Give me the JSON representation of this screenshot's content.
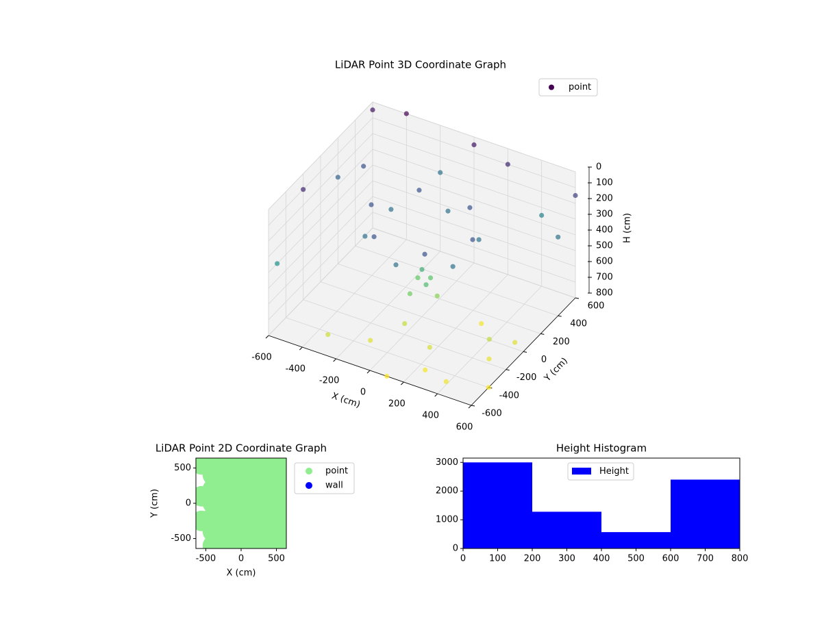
{
  "chart_data": [
    {
      "type": "scatter3d",
      "title": "LiDAR Point 3D Coordinate Graph",
      "xlabel": "X (cm)",
      "ylabel": "Y (cm)",
      "zlabel": "H (cm)",
      "xlim": [
        -600,
        600
      ],
      "ylim": [
        -600,
        600
      ],
      "zlim": [
        0,
        800
      ],
      "xticks": [
        -600,
        -400,
        -200,
        0,
        200,
        400,
        600
      ],
      "yticks": [
        -600,
        -400,
        -200,
        0,
        200,
        400,
        600
      ],
      "zticks": [
        0,
        100,
        200,
        300,
        400,
        500,
        600,
        700,
        800
      ],
      "colormap": "viridis",
      "grid": true,
      "legend": "upper right",
      "series": [
        {
          "name": "point",
          "color": "#440154",
          "x": [
            300,
            260,
            150,
            0,
            -150,
            -260,
            -300,
            -260,
            -150,
            0,
            150,
            260,
            0,
            50,
            -50,
            80,
            -30,
            20,
            200,
            400,
            500,
            300,
            -100,
            100,
            600,
            450,
            -300,
            0,
            250,
            550,
            -600,
            -400,
            -600,
            -600,
            600,
            200,
            -200,
            600,
            -600,
            400,
            -500,
            0
          ],
          "y": [
            0,
            150,
            260,
            300,
            260,
            150,
            0,
            -150,
            -260,
            -300,
            -260,
            -150,
            0,
            -50,
            50,
            20,
            -80,
            60,
            -300,
            -500,
            -200,
            100,
            -400,
            -600,
            -400,
            -100,
            -500,
            -200,
            -450,
            0,
            600,
            600,
            -200,
            200,
            600,
            600,
            600,
            400,
            -500,
            600,
            300,
            600
          ],
          "z": [
            200,
            300,
            200,
            300,
            200,
            300,
            200,
            300,
            200,
            300,
            200,
            300,
            500,
            550,
            600,
            650,
            620,
            580,
            750,
            780,
            770,
            790,
            760,
            800,
            800,
            720,
            740,
            730,
            790,
            760,
            50,
            0,
            100,
            250,
            150,
            100,
            300,
            300,
            400,
            350,
            200,
            50
          ]
        }
      ]
    },
    {
      "type": "scatter",
      "title": "LiDAR Point 2D Coordinate Graph",
      "xlabel": "X (cm)",
      "ylabel": "Y (cm)",
      "xlim": [
        -640,
        640
      ],
      "ylim": [
        -640,
        640
      ],
      "xticks": [
        -500,
        0,
        500
      ],
      "yticks": [
        -500,
        0,
        500
      ],
      "legend": "outside right",
      "series": [
        {
          "name": "point",
          "color": "#90ee90",
          "x": [
            -400,
            -400,
            -400,
            -400,
            -400,
            -400,
            -400,
            -200,
            -200,
            -200,
            -200,
            -200,
            -200,
            -200,
            0,
            0,
            0,
            0,
            0,
            0,
            0,
            200,
            200,
            200,
            200,
            200,
            200,
            200,
            400,
            400,
            400,
            400,
            400,
            400,
            400,
            600,
            600,
            600,
            600,
            600,
            600,
            600,
            -560,
            -560,
            -560
          ],
          "y": [
            -600,
            -400,
            -200,
            0,
            200,
            400,
            600,
            -600,
            -400,
            -200,
            0,
            200,
            400,
            600,
            -600,
            -400,
            -200,
            0,
            200,
            400,
            600,
            -600,
            -400,
            -200,
            0,
            200,
            400,
            600,
            -600,
            -400,
            -200,
            0,
            200,
            400,
            600,
            -600,
            -400,
            -200,
            0,
            200,
            400,
            600,
            550,
            100,
            -250
          ]
        },
        {
          "name": "wall",
          "color": "#0000ff",
          "x": [],
          "y": []
        }
      ]
    },
    {
      "type": "hist",
      "title": "Height Histogram",
      "bins": [
        0,
        200,
        400,
        600,
        800
      ],
      "counts": [
        3000,
        1280,
        570,
        2400
      ],
      "xlim": [
        0,
        800
      ],
      "ylim": [
        0,
        3150
      ],
      "xticks": [
        0,
        100,
        200,
        300,
        400,
        500,
        600,
        700,
        800
      ],
      "yticks": [
        0,
        1000,
        2000,
        3000
      ],
      "color": "#0000ff",
      "legend": "upper center",
      "series_name": "Height"
    }
  ]
}
